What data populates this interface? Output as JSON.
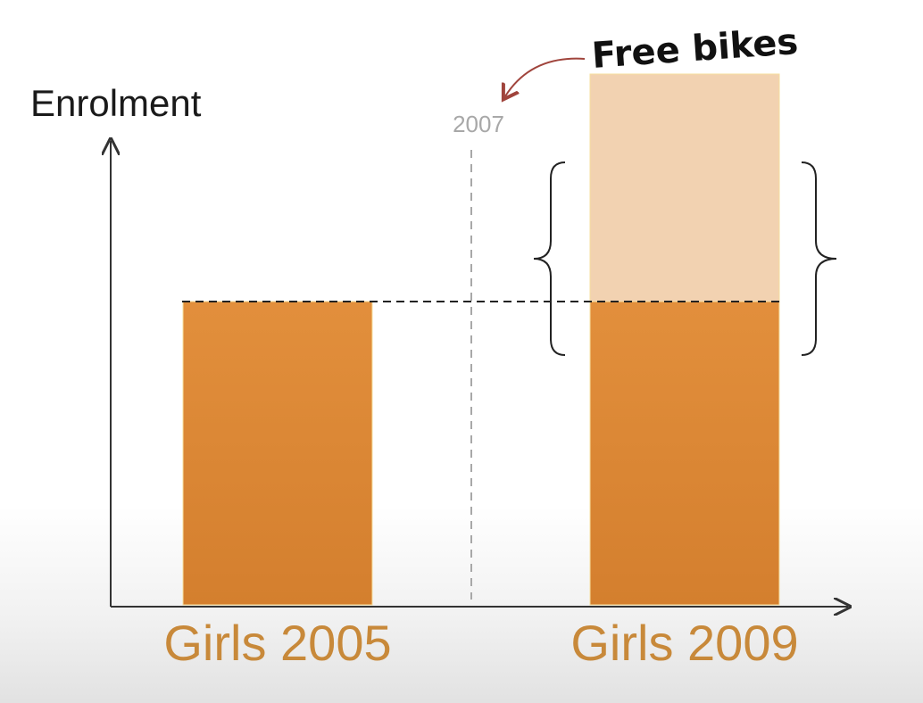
{
  "chart_data": {
    "type": "bar",
    "ylabel": "Enrolment",
    "categories": [
      "Girls 2005",
      "Girls 2009"
    ],
    "values": [
      1.0,
      1.0
    ],
    "increase": [
      0,
      0.75
    ],
    "ylim": [
      0,
      1.2
    ],
    "event": {
      "label": "2007",
      "x_between": [
        "Girls 2005",
        "Girls 2009"
      ]
    },
    "annotation": {
      "text": "Free bikes",
      "points_to": "2007"
    },
    "reference_line_value": 1.0,
    "grid": false,
    "colors": {
      "bar": "#de8a37",
      "bar_light": "#f2d2b1",
      "category_text": "#c8893a",
      "event_line": "#a8a8a8",
      "arrow": "#a0443c"
    }
  }
}
